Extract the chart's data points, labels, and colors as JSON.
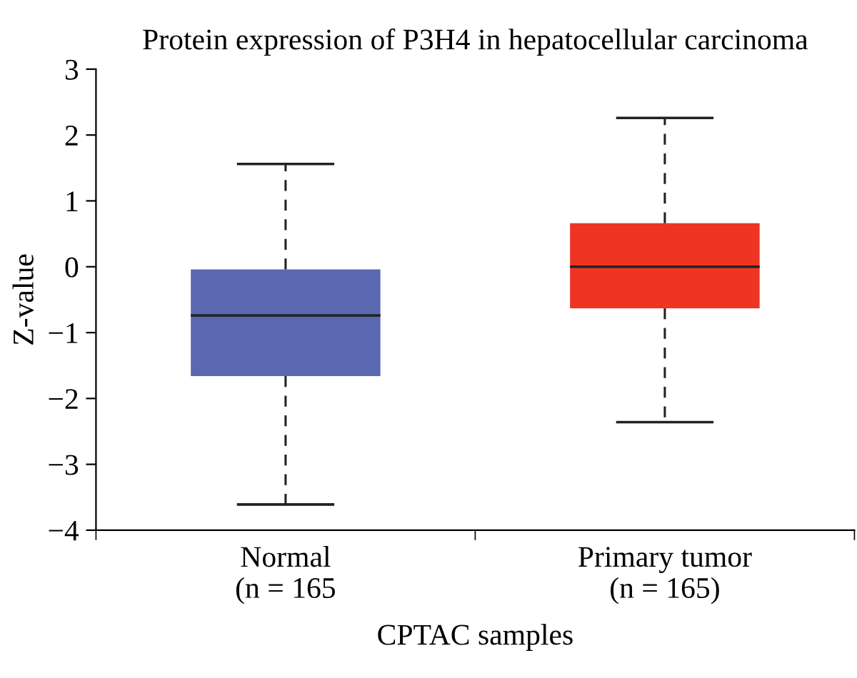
{
  "chart_data": {
    "type": "box",
    "title": "Protein expression of P3H4 in hepatocellular carcinoma",
    "xlabel": "CPTAC samples",
    "ylabel": "Z-value",
    "categories": [
      "Normal\n(n = 165",
      "Primary tumor\n(n = 165)"
    ],
    "colors": [
      "#5a68b0",
      "#ee3524"
    ],
    "boxes": [
      {
        "low": -3.61,
        "q1": -1.66,
        "median": -0.74,
        "q3": -0.04,
        "high": 1.56
      },
      {
        "low": -2.36,
        "q1": -0.63,
        "median": 0.0,
        "q3": 0.66,
        "high": 2.26
      }
    ],
    "ylim": [
      -4,
      3
    ],
    "yticks": [
      -4,
      -3,
      -2,
      -1,
      0,
      1,
      2,
      3
    ],
    "grid": false,
    "legend": false
  }
}
